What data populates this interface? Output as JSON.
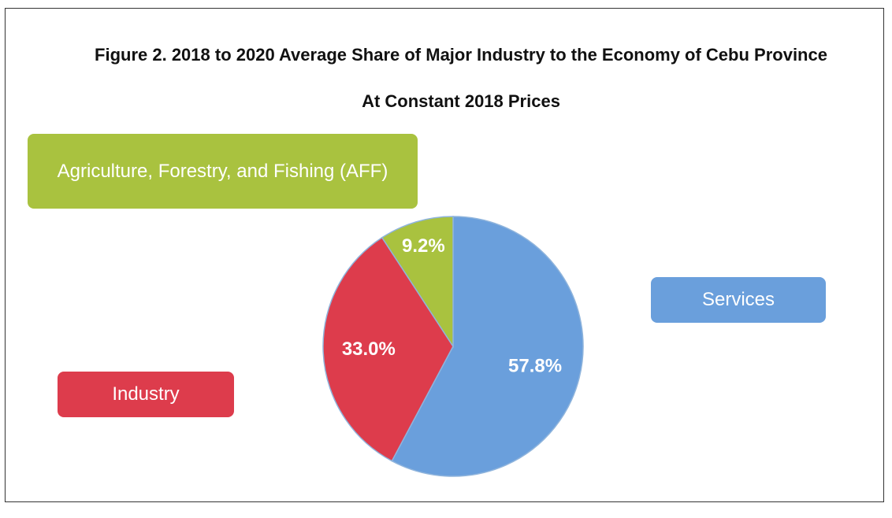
{
  "chart_data": {
    "type": "pie",
    "title": "Figure 2. 2018 to 2020 Average Share of Major Industry to the Economy of Cebu Province",
    "subtitle": "At Constant 2018 Prices",
    "categories": [
      "Services",
      "Industry",
      "Agriculture, Forestry, and Fishing (AFF)"
    ],
    "values": [
      57.8,
      33.0,
      9.2
    ],
    "value_labels": [
      "57.8%",
      "33.0%",
      "9.2%"
    ],
    "colors": [
      "#6a9fdc",
      "#dd3c4c",
      "#a9c23f"
    ]
  }
}
